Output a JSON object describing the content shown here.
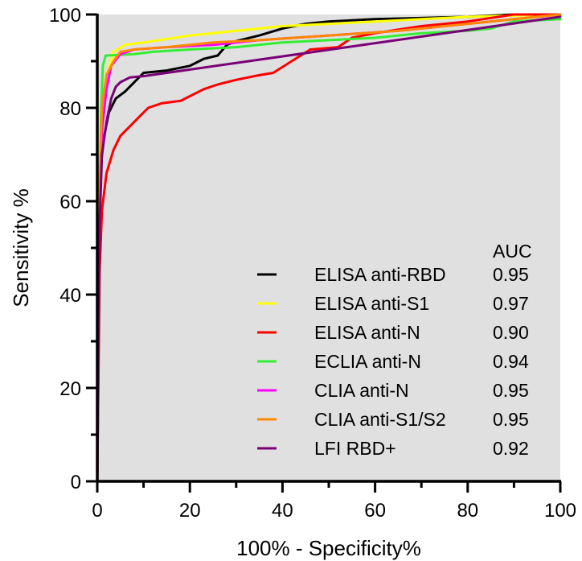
{
  "chart_data": {
    "type": "line",
    "xlabel": "100% - Specificity%",
    "ylabel": "Sensitivity %",
    "xlim": [
      0,
      100
    ],
    "ylim": [
      0,
      100
    ],
    "xticks": [
      "0",
      "20",
      "40",
      "60",
      "80",
      "100"
    ],
    "yticks": [
      "0",
      "20",
      "40",
      "60",
      "80",
      "100"
    ],
    "grid": false,
    "background": "#e0e0e0",
    "legend_placement": "bottom-right",
    "legend_header": "AUC",
    "series": [
      {
        "name": "ELISA anti-RBD",
        "auc": "0.95",
        "color": "#000000",
        "points": [
          [
            0,
            0
          ],
          [
            0.3,
            55
          ],
          [
            0.8,
            68
          ],
          [
            1.5,
            74
          ],
          [
            2.5,
            79
          ],
          [
            4,
            82
          ],
          [
            6,
            83.5
          ],
          [
            8,
            85.5
          ],
          [
            10,
            87.5
          ],
          [
            15,
            88
          ],
          [
            20,
            89
          ],
          [
            23,
            90.5
          ],
          [
            26,
            91.2
          ],
          [
            28,
            93.5
          ],
          [
            30,
            94.3
          ],
          [
            35,
            95.5
          ],
          [
            40,
            97
          ],
          [
            45,
            98
          ],
          [
            50,
            98.5
          ],
          [
            60,
            99
          ],
          [
            80,
            99.5
          ],
          [
            90,
            100
          ],
          [
            100,
            100
          ]
        ]
      },
      {
        "name": "ELISA anti-S1",
        "auc": "0.97",
        "color": "#ffff00",
        "points": [
          [
            0,
            0
          ],
          [
            0.5,
            60
          ],
          [
            1,
            78
          ],
          [
            2,
            87
          ],
          [
            3.5,
            92
          ],
          [
            6,
            93.5
          ],
          [
            10,
            94
          ],
          [
            20,
            95.5
          ],
          [
            30,
            96.5
          ],
          [
            40,
            97.5
          ],
          [
            50,
            98
          ],
          [
            60,
            98.5
          ],
          [
            70,
            99
          ],
          [
            80,
            99.5
          ],
          [
            100,
            100
          ]
        ]
      },
      {
        "name": "ELISA anti-N",
        "auc": "0.90",
        "color": "#ff0000",
        "points": [
          [
            0,
            0
          ],
          [
            0.5,
            45
          ],
          [
            1,
            58
          ],
          [
            2,
            66
          ],
          [
            3.5,
            71
          ],
          [
            5,
            74
          ],
          [
            7,
            76
          ],
          [
            9,
            78
          ],
          [
            11,
            80
          ],
          [
            14,
            81
          ],
          [
            18,
            81.5
          ],
          [
            20,
            82.5
          ],
          [
            23,
            84
          ],
          [
            26,
            85
          ],
          [
            30,
            86
          ],
          [
            35,
            87
          ],
          [
            38,
            87.5
          ],
          [
            42,
            90
          ],
          [
            46,
            92.5
          ],
          [
            52,
            93
          ],
          [
            55,
            95
          ],
          [
            60,
            96
          ],
          [
            70,
            97.5
          ],
          [
            80,
            98.5
          ],
          [
            90,
            100
          ],
          [
            100,
            100
          ]
        ]
      },
      {
        "name": "ECLIA anti-N",
        "auc": "0.94",
        "color": "#33ee33",
        "points": [
          [
            0,
            0
          ],
          [
            0.4,
            50
          ],
          [
            0.8,
            78
          ],
          [
            1.2,
            89
          ],
          [
            1.8,
            91.2
          ],
          [
            4,
            91.3
          ],
          [
            8,
            91.5
          ],
          [
            12,
            92
          ],
          [
            20,
            92.5
          ],
          [
            30,
            93
          ],
          [
            40,
            94
          ],
          [
            50,
            94.5
          ],
          [
            60,
            95
          ],
          [
            70,
            96
          ],
          [
            80,
            96.5
          ],
          [
            85,
            97
          ],
          [
            90,
            98.5
          ],
          [
            100,
            99
          ]
        ]
      },
      {
        "name": "CLIA anti-N",
        "auc": "0.95",
        "color": "#ff00ff",
        "points": [
          [
            0,
            0
          ],
          [
            0.5,
            60
          ],
          [
            1,
            75
          ],
          [
            2,
            84
          ],
          [
            3,
            89
          ],
          [
            5,
            91.5
          ],
          [
            8,
            92.5
          ],
          [
            15,
            93
          ],
          [
            25,
            93.5
          ],
          [
            35,
            94.5
          ],
          [
            50,
            95.5
          ],
          [
            65,
            96.5
          ],
          [
            80,
            98
          ],
          [
            90,
            99
          ],
          [
            100,
            100
          ]
        ]
      },
      {
        "name": "CLIA anti-S1/S2",
        "auc": "0.95",
        "color": "#ff8800",
        "points": [
          [
            0,
            0
          ],
          [
            0.5,
            65
          ],
          [
            1,
            80
          ],
          [
            2,
            87
          ],
          [
            3.5,
            90
          ],
          [
            5,
            92
          ],
          [
            8,
            92.5
          ],
          [
            15,
            93
          ],
          [
            25,
            94
          ],
          [
            35,
            94.5
          ],
          [
            50,
            95.5
          ],
          [
            65,
            96.5
          ],
          [
            80,
            98
          ],
          [
            90,
            99
          ],
          [
            100,
            100
          ]
        ]
      },
      {
        "name": "LFI RBD+",
        "auc": "0.92",
        "color": "#7a0077",
        "points": [
          [
            0,
            0
          ],
          [
            0.5,
            55
          ],
          [
            1,
            70
          ],
          [
            2,
            77
          ],
          [
            3,
            82
          ],
          [
            4,
            84.5
          ],
          [
            5,
            85.5
          ],
          [
            7,
            86.5
          ],
          [
            10,
            86.8
          ],
          [
            100,
            99.5
          ]
        ]
      }
    ]
  }
}
